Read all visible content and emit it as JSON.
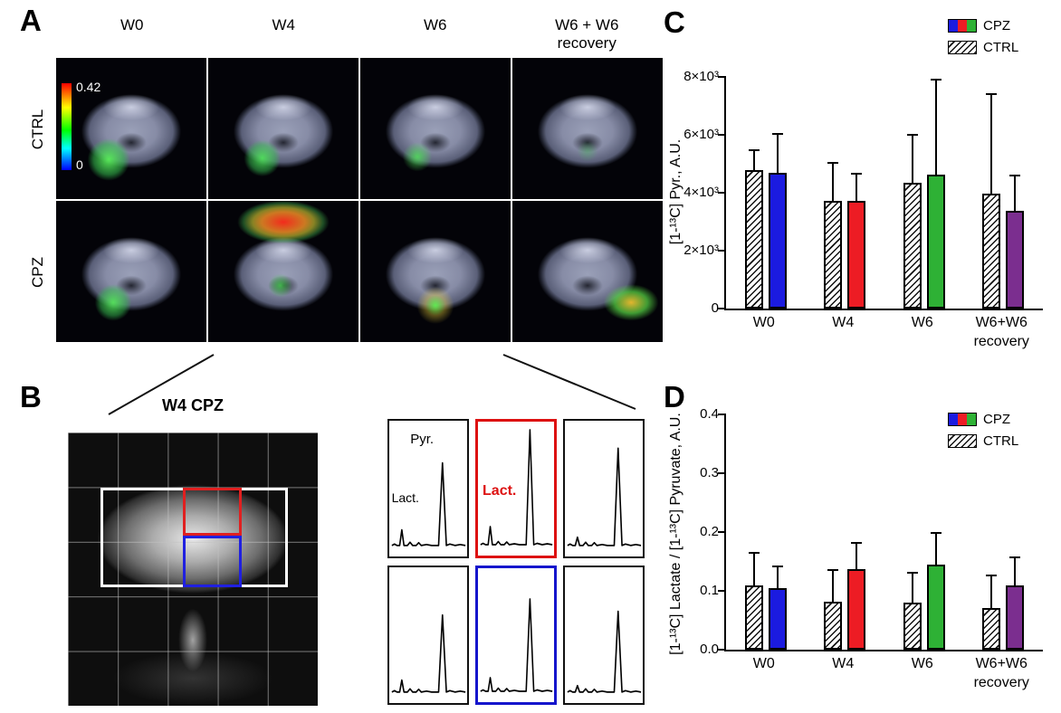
{
  "figure": {
    "panel_a": {
      "label": "A",
      "col_headers": [
        "W0",
        "W4",
        "W6",
        "W6 + W6\nrecovery"
      ],
      "row_labels": [
        "CTRL",
        "CPZ"
      ],
      "colorbar": {
        "max_label": "0.42",
        "min_label": "0"
      }
    },
    "panel_b": {
      "label": "B",
      "title": "W4 CPZ",
      "pyr_label": "Pyr.",
      "lact_label": "Lact.",
      "lact_red_label": "Lact."
    },
    "panel_c": {
      "label": "C"
    },
    "panel_d": {
      "label": "D"
    },
    "colors": {
      "cpz_w0": "#1b1be0",
      "cpz_w4": "#ed1c24",
      "cpz_w6": "#2eb135",
      "cpz_w6w6": "#7b2e8f",
      "roi_red": "#e02020",
      "roi_blue": "#2020e0"
    }
  },
  "chart_data": [
    {
      "type": "bar",
      "panel": "C",
      "title": "",
      "xlabel": "",
      "ylabel": "[1-¹³C] Pyr., A.U.",
      "categories": [
        "W0",
        "W4",
        "W6",
        "W6+W6\nrecovery"
      ],
      "series": [
        {
          "name": "CTRL",
          "pattern": "diagonal-hatch",
          "values": [
            4770,
            3730,
            4330,
            3980
          ],
          "errors_plus": [
            660,
            1290,
            1630,
            3420
          ]
        },
        {
          "name": "CPZ",
          "colors": [
            "#1b1be0",
            "#ed1c24",
            "#2eb135",
            "#7b2e8f"
          ],
          "values": [
            4700,
            3730,
            4640,
            3390
          ],
          "errors_plus": [
            1320,
            910,
            3260,
            1190
          ]
        }
      ],
      "ylim": [
        0,
        8000
      ],
      "yticks": {
        "values": [
          0,
          2000,
          4000,
          6000,
          8000
        ],
        "labels": [
          "0",
          "2×10³",
          "4×10³",
          "6×10³",
          "8×10³"
        ]
      },
      "legend": [
        "CPZ",
        "CTRL"
      ],
      "legend_position": "top-right",
      "grid": false,
      "error_bars": "upper only, capped"
    },
    {
      "type": "bar",
      "panel": "D",
      "title": "",
      "xlabel": "",
      "ylabel": "[1-¹³C] Lactate / [1-¹³C] Pyruvate, A.U.",
      "categories": [
        "W0",
        "W4",
        "W6",
        "W6+W6\nrecovery"
      ],
      "series": [
        {
          "name": "CTRL",
          "pattern": "diagonal-hatch",
          "values": [
            0.11,
            0.082,
            0.08,
            0.071
          ],
          "errors_plus": [
            0.054,
            0.053,
            0.049,
            0.054
          ]
        },
        {
          "name": "CPZ",
          "colors": [
            "#1b1be0",
            "#ed1c24",
            "#2eb135",
            "#7b2e8f"
          ],
          "values": [
            0.105,
            0.137,
            0.145,
            0.109
          ],
          "errors_plus": [
            0.035,
            0.043,
            0.052,
            0.046
          ]
        }
      ],
      "ylim": [
        0,
        0.4
      ],
      "yticks": {
        "values": [
          0,
          0.1,
          0.2,
          0.3,
          0.4
        ],
        "labels": [
          "0.0",
          "0.1",
          "0.2",
          "0.3",
          "0.4"
        ]
      },
      "legend": [
        "CPZ",
        "CTRL"
      ],
      "legend_position": "top-right",
      "grid": false,
      "error_bars": "upper only, capped"
    }
  ]
}
